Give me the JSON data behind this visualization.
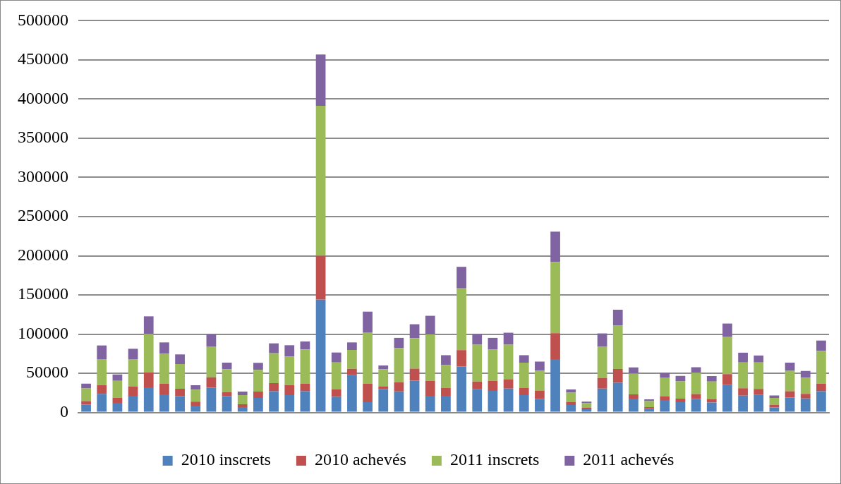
{
  "chart_data": {
    "type": "bar",
    "stacked": true,
    "categories": [
      null,
      null,
      null,
      null,
      null,
      null,
      null,
      null,
      null,
      null,
      null,
      null,
      null,
      null,
      null,
      null,
      null,
      null,
      null,
      null,
      null,
      null,
      null,
      null,
      null,
      null,
      null,
      null,
      null,
      null,
      null,
      null,
      null,
      null,
      null,
      null,
      null,
      null,
      null,
      null,
      null,
      null,
      null,
      null,
      null,
      null,
      null,
      null
    ],
    "series": [
      {
        "name": "2010 inscrets",
        "color": "#4f81bd",
        "values": [
          10000,
          23700,
          12300,
          21300,
          32100,
          23100,
          20700,
          8700,
          31500,
          20700,
          6900,
          18600,
          27000,
          22200,
          27000,
          144000,
          19800,
          47700,
          13200,
          29700,
          26900,
          40700,
          21300,
          21300,
          58700,
          29600,
          27500,
          30500,
          22200,
          17100,
          68000,
          9600,
          4200,
          30500,
          38000,
          17700,
          4500,
          15900,
          13200,
          17300,
          12800,
          35500,
          21500,
          22400,
          6300,
          19100,
          17900,
          27100
        ]
      },
      {
        "name": "2010 achevés",
        "color": "#c0504d",
        "values": [
          4500,
          11400,
          6300,
          11700,
          19200,
          13500,
          9600,
          5100,
          13500,
          5100,
          3600,
          8100,
          10500,
          12900,
          9600,
          56000,
          9600,
          8100,
          23400,
          3600,
          11400,
          15300,
          18800,
          10100,
          20900,
          9900,
          12600,
          12000,
          8900,
          11000,
          33200,
          3600,
          1800,
          13200,
          17400,
          5400,
          2400,
          4800,
          4500,
          6200,
          4500,
          13400,
          9500,
          7700,
          3200,
          8000,
          5900,
          9600
        ]
      },
      {
        "name": "2011 inscrets",
        "color": "#9bbb59",
        "values": [
          16200,
          33000,
          21900,
          35100,
          48900,
          38400,
          31500,
          15300,
          39300,
          29400,
          11700,
          27600,
          38100,
          36300,
          43800,
          191300,
          34500,
          24000,
          65100,
          21900,
          44000,
          38900,
          59600,
          29100,
          78800,
          47000,
          40100,
          44000,
          32400,
          25200,
          90700,
          12200,
          6000,
          40100,
          55400,
          26600,
          7500,
          23900,
          22100,
          27200,
          22300,
          47400,
          32800,
          33700,
          9000,
          26500,
          20600,
          42000
        ]
      },
      {
        "name": "2011 achevés",
        "color": "#8064a2",
        "values": [
          6000,
          17400,
          8100,
          13200,
          22500,
          14400,
          12300,
          5700,
          15600,
          8400,
          4500,
          9000,
          12600,
          14400,
          10200,
          65600,
          12600,
          9600,
          27000,
          4800,
          12900,
          17700,
          23700,
          12600,
          27500,
          13800,
          15000,
          15300,
          9600,
          11700,
          38900,
          3900,
          1800,
          17100,
          20300,
          7800,
          2400,
          6000,
          6900,
          7100,
          6900,
          17200,
          12500,
          8900,
          3300,
          9900,
          8600,
          13100
        ]
      }
    ],
    "ylim": [
      0,
      500000
    ],
    "yticks": [
      0,
      50000,
      100000,
      150000,
      200000,
      250000,
      300000,
      350000,
      400000,
      450000,
      500000
    ],
    "grid": "y",
    "legend": "bottom"
  }
}
